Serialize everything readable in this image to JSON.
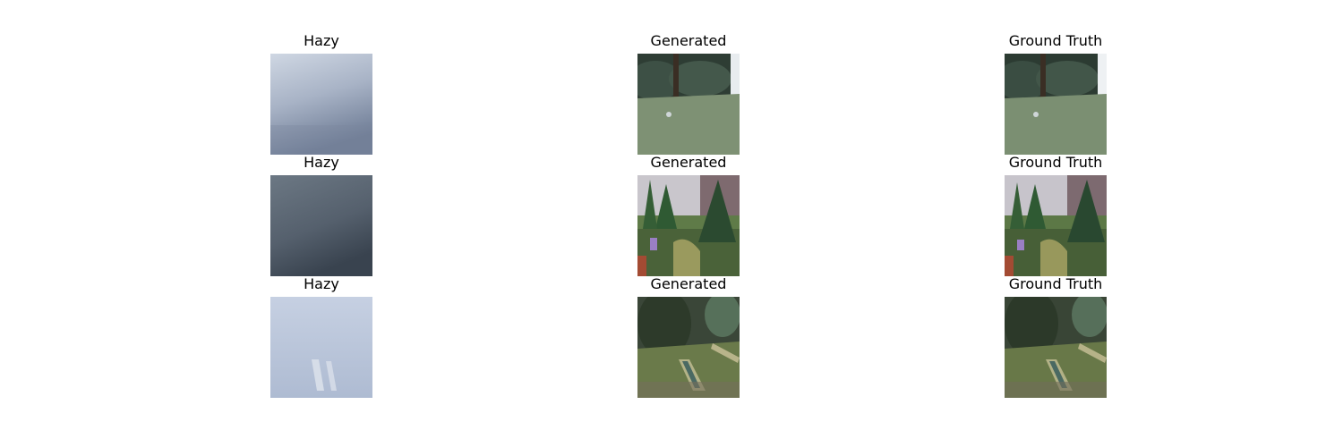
{
  "rows": [
    {
      "hazy_title": "Hazy",
      "generated_title": "Generated",
      "ground_truth_title": "Ground Truth"
    },
    {
      "hazy_title": "Hazy",
      "generated_title": "Generated",
      "ground_truth_title": "Ground Truth"
    },
    {
      "hazy_title": "Hazy",
      "generated_title": "Generated",
      "ground_truth_title": "Ground Truth"
    }
  ],
  "colors": {
    "haze_1": "#a9b3c4",
    "haze_2": "#56616d",
    "haze_3": "#bcc8dc",
    "grass": "#5d7a4a",
    "foliage": "#2f4a34"
  }
}
